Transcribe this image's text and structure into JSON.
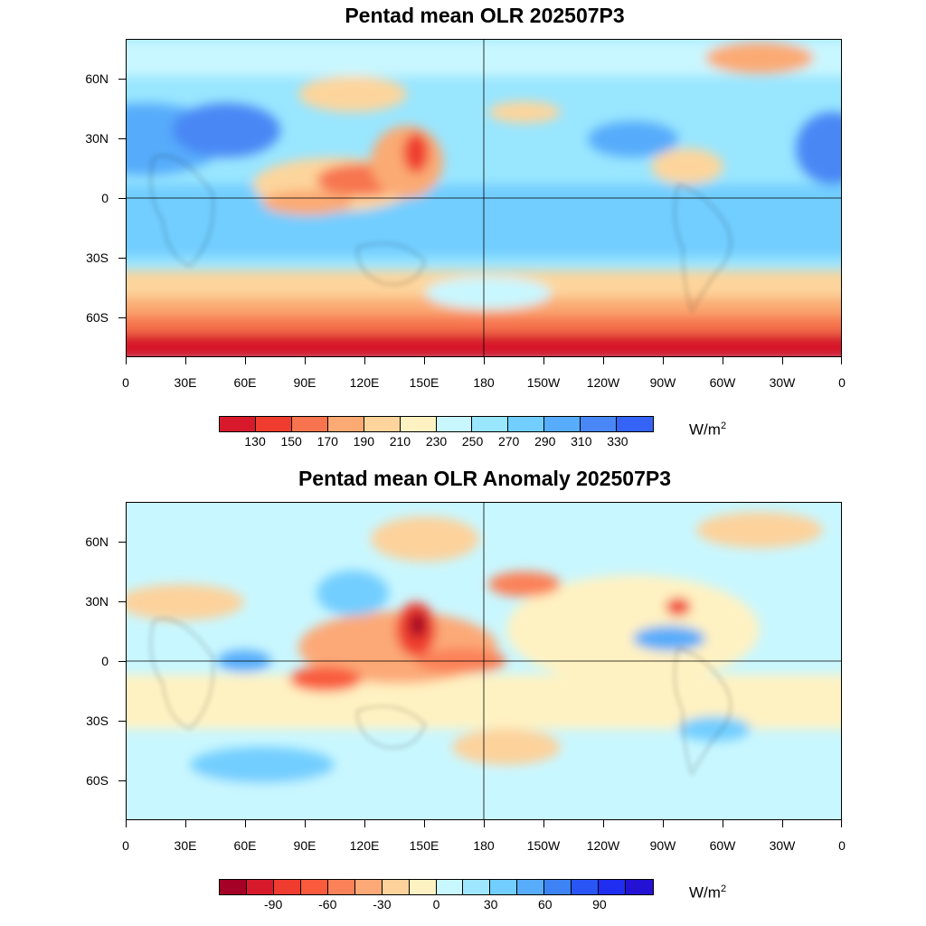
{
  "top_panel": {
    "title": "Pentad mean OLR 202507P3",
    "y_labels": [
      "60N",
      "30N",
      "0",
      "30S",
      "60S"
    ],
    "x_labels": [
      "0",
      "30E",
      "60E",
      "90E",
      "120E",
      "150E",
      "180",
      "150W",
      "120W",
      "90W",
      "60W",
      "30W",
      "0"
    ],
    "colorbar": {
      "colors": [
        "#d7192b",
        "#f03c2f",
        "#f7744f",
        "#fbaa73",
        "#fdd59c",
        "#fff2c2",
        "#c9f7ff",
        "#99e6ff",
        "#72ceff",
        "#57acfb",
        "#4887f5",
        "#3463f6"
      ],
      "labels": [
        "130",
        "150",
        "170",
        "190",
        "210",
        "230",
        "250",
        "270",
        "290",
        "310",
        "330"
      ]
    },
    "units": "W/m",
    "units_sup": "2"
  },
  "bottom_panel": {
    "title": "Pentad mean OLR Anomaly 202507P3",
    "y_labels": [
      "60N",
      "30N",
      "0",
      "30S",
      "60S"
    ],
    "x_labels": [
      "0",
      "30E",
      "60E",
      "90E",
      "120E",
      "150E",
      "180",
      "150W",
      "120W",
      "90W",
      "60W",
      "30W",
      "0"
    ],
    "colorbar": {
      "colors": [
        "#a50026",
        "#d7192b",
        "#f03c2f",
        "#f95b3c",
        "#fb8158",
        "#fca977",
        "#fdd29b",
        "#fff2c2",
        "#c9f7ff",
        "#9fe7ff",
        "#72ceff",
        "#57acfb",
        "#3d83f3",
        "#2a55f5",
        "#1f2ef0",
        "#2412d4"
      ],
      "labels": [
        "-90",
        "-60",
        "-30",
        "0",
        "30",
        "60",
        "90"
      ]
    },
    "units": "W/m",
    "units_sup": "2"
  }
}
